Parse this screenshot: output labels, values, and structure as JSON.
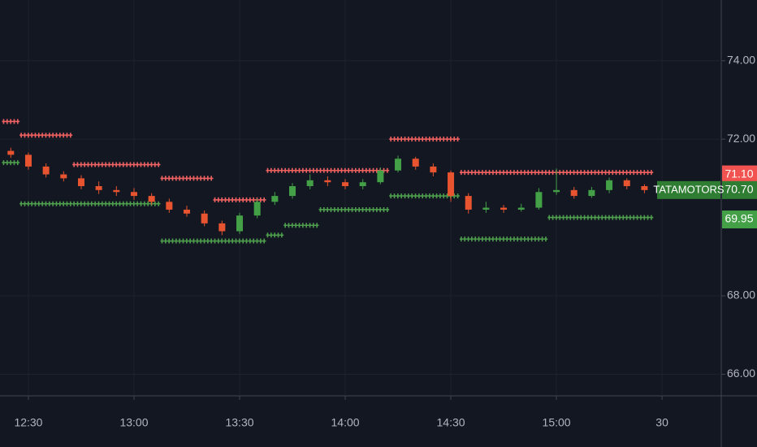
{
  "chart_data": {
    "type": "candlestick",
    "categories": [
      null,
      "12:30",
      null,
      null,
      null,
      null,
      null,
      "13:00",
      null,
      null,
      null,
      null,
      null,
      "13:30",
      null,
      null,
      null,
      null,
      null,
      "14:00",
      null,
      null,
      null,
      null,
      null,
      "14:30",
      null,
      null,
      null,
      null,
      null,
      "15:00",
      null,
      null,
      null,
      null,
      null,
      "30"
    ],
    "open": [
      71.7,
      71.6,
      71.3,
      71.1,
      71.0,
      70.8,
      70.7,
      70.65,
      70.55,
      70.4,
      70.2,
      70.1,
      69.85,
      69.65,
      70.05,
      70.4,
      70.55,
      70.8,
      70.95,
      70.9,
      70.8,
      70.9,
      71.2,
      71.5,
      71.3,
      71.15,
      70.55,
      70.2,
      70.25,
      70.2,
      70.25,
      70.65,
      70.7,
      70.55,
      70.7,
      70.95,
      70.8,
      null
    ],
    "high": [
      71.78,
      71.66,
      71.38,
      71.18,
      71.08,
      70.92,
      70.8,
      70.75,
      70.62,
      70.48,
      70.3,
      70.18,
      69.92,
      70.12,
      70.48,
      70.65,
      70.88,
      71.1,
      71.05,
      70.98,
      70.98,
      71.28,
      71.58,
      71.55,
      71.38,
      71.2,
      70.62,
      70.4,
      70.32,
      70.35,
      70.75,
      71.25,
      70.78,
      70.78,
      71.02,
      71.0,
      70.85,
      null
    ],
    "low": [
      71.52,
      71.22,
      71.02,
      70.92,
      70.72,
      70.6,
      70.55,
      70.45,
      70.32,
      70.12,
      70.02,
      69.78,
      69.55,
      69.58,
      69.98,
      70.32,
      70.48,
      70.72,
      70.8,
      70.72,
      70.72,
      70.85,
      71.15,
      71.22,
      71.05,
      70.4,
      70.1,
      70.12,
      70.12,
      70.15,
      70.2,
      70.58,
      70.48,
      70.5,
      70.62,
      70.72,
      70.62,
      null
    ],
    "close": [
      71.6,
      71.3,
      71.1,
      71.0,
      70.8,
      70.7,
      70.65,
      70.55,
      70.4,
      70.2,
      70.1,
      69.85,
      69.65,
      70.05,
      70.4,
      70.55,
      70.8,
      70.95,
      70.9,
      70.8,
      70.9,
      71.2,
      71.5,
      71.3,
      71.15,
      70.55,
      70.2,
      70.25,
      70.2,
      70.25,
      70.65,
      70.7,
      70.55,
      70.7,
      70.95,
      70.8,
      70.7,
      null
    ],
    "up_color": "#43a047",
    "down_color": "#e8542f",
    "upper_stop": {
      "color": "#f06262",
      "values": [
        72.45,
        72.1,
        72.1,
        72.1,
        71.35,
        71.35,
        71.35,
        71.35,
        71.35,
        71.0,
        71.0,
        71.0,
        70.45,
        70.45,
        70.45,
        71.2,
        71.2,
        71.2,
        71.2,
        71.2,
        71.2,
        71.2,
        72.0,
        72.0,
        72.0,
        72.0,
        71.15,
        71.15,
        71.15,
        71.15,
        71.15,
        71.15,
        71.15,
        71.15,
        71.15,
        71.15,
        71.15,
        null
      ]
    },
    "lower_stop": {
      "color": "#4e9e4e",
      "values": [
        71.4,
        70.35,
        70.35,
        70.35,
        70.35,
        70.35,
        70.35,
        70.35,
        70.35,
        69.4,
        69.4,
        69.4,
        69.4,
        69.4,
        69.4,
        69.55,
        69.8,
        69.8,
        70.2,
        70.2,
        70.2,
        70.2,
        70.55,
        70.55,
        70.55,
        70.55,
        69.45,
        69.45,
        69.45,
        69.45,
        69.45,
        70.0,
        70.0,
        70.0,
        70.0,
        70.0,
        70.0,
        null
      ]
    },
    "ylim": [
      65.45,
      75.55
    ],
    "yticks": [
      {
        "value": 66,
        "label": "66.00"
      },
      {
        "value": 68,
        "label": "68.00"
      },
      {
        "value": 72,
        "label": "72.00"
      },
      {
        "value": 74,
        "label": "74.00"
      }
    ],
    "grid": true,
    "price_labels": [
      {
        "value": 71.1,
        "label": "71.10",
        "color": "#f05350"
      },
      {
        "value": 70.7,
        "label": "70.70",
        "color": "#2e7d32",
        "symbol": "TATAMOTORS"
      },
      {
        "value": 69.95,
        "label": "69.95",
        "color": "#43a047"
      }
    ]
  }
}
